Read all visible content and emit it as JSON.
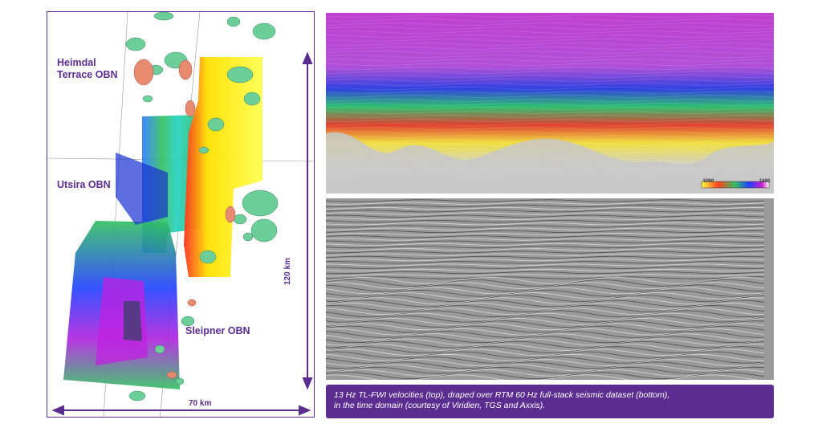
{
  "map": {
    "labels": {
      "heimdal_line1": "Heimdal",
      "heimdal_line2": "Terrace OBN",
      "utsira": "Utsira OBN",
      "sleipner": "Sleipner OBN"
    },
    "dimension_vertical": "120 km",
    "dimension_horizontal": "70 km"
  },
  "velocity_panel": {
    "colorbar_min": "5000",
    "colorbar_max": "1600",
    "colormap": [
      "#ffff40",
      "#ff4020",
      "#30c060",
      "#2040ff",
      "#d020d0",
      "#ffffff"
    ]
  },
  "caption": {
    "line1": "13 Hz TL-FWI velocities (top), draped over RTM 60 Hz full-stack seismic dataset (bottom),",
    "line2": "in the time domain (courtesy of Viridien, TGS and Axxis)."
  },
  "colors": {
    "accent": "#5b2d91",
    "field_green": "#6ccf9a",
    "field_salmon": "#e88a70"
  }
}
